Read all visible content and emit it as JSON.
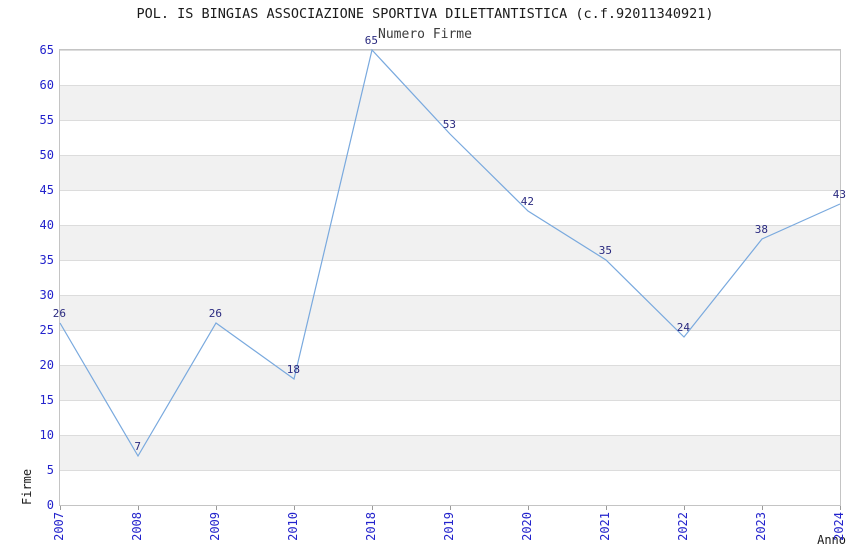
{
  "title": "POL. IS BINGIAS ASSOCIAZIONE SPORTIVA DILETTANTISTICA (c.f.92011340921)",
  "chart_data": {
    "type": "line",
    "title": "POL. IS BINGIAS ASSOCIAZIONE SPORTIVA DILETTANTISTICA (c.f.92011340921)",
    "subtitle": "Numero Firme",
    "xlabel": "Anno",
    "ylabel": "Firme",
    "categories": [
      "2007",
      "2008",
      "2009",
      "2010",
      "2018",
      "2019",
      "2020",
      "2021",
      "2022",
      "2023",
      "2024"
    ],
    "values": [
      26,
      7,
      26,
      18,
      65,
      53,
      42,
      35,
      24,
      38,
      43
    ],
    "ylim": [
      0,
      65
    ],
    "y_ticks": [
      0,
      5,
      10,
      15,
      20,
      25,
      30,
      35,
      40,
      45,
      50,
      55,
      60,
      65
    ],
    "grid": "horizontal-bands",
    "legend_position": "none",
    "data_labels_shown": true,
    "colors": {
      "line": "#79a9de",
      "data_label": "#29297f",
      "tick_label": "#2323cc",
      "band_fill": "#f1f1f1",
      "gridline": "#dcdcdc",
      "axis_border": "#c4c4c4",
      "title_text": "#1a1a1a"
    }
  }
}
